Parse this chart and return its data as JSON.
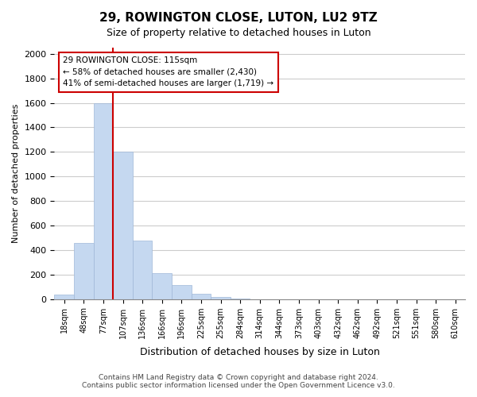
{
  "title": "29, ROWINGTON CLOSE, LUTON, LU2 9TZ",
  "subtitle": "Size of property relative to detached houses in Luton",
  "xlabel": "Distribution of detached houses by size in Luton",
  "ylabel": "Number of detached properties",
  "bar_labels": [
    "18sqm",
    "48sqm",
    "77sqm",
    "107sqm",
    "136sqm",
    "166sqm",
    "196sqm",
    "225sqm",
    "255sqm",
    "284sqm",
    "314sqm",
    "344sqm",
    "373sqm",
    "403sqm",
    "432sqm",
    "462sqm",
    "492sqm",
    "521sqm",
    "551sqm",
    "580sqm",
    "610sqm"
  ],
  "bar_values": [
    35,
    455,
    1600,
    1200,
    480,
    210,
    115,
    45,
    20,
    5,
    0,
    0,
    0,
    0,
    0,
    0,
    0,
    0,
    0,
    0,
    0
  ],
  "bar_color": "#c5d8f0",
  "bar_edge_color": "#a0b8d8",
  "vline_x": 3,
  "vline_color": "#cc0000",
  "annotation_line1": "29 ROWINGTON CLOSE: 115sqm",
  "annotation_line2": "← 58% of detached houses are smaller (2,430)",
  "annotation_line3": "41% of semi-detached houses are larger (1,719) →",
  "annotation_box_color": "white",
  "annotation_box_edge": "#cc0000",
  "ylim": [
    0,
    2050
  ],
  "yticks": [
    0,
    200,
    400,
    600,
    800,
    1000,
    1200,
    1400,
    1600,
    1800,
    2000
  ],
  "footer_line1": "Contains HM Land Registry data © Crown copyright and database right 2024.",
  "footer_line2": "Contains public sector information licensed under the Open Government Licence v3.0.",
  "bg_color": "#ffffff",
  "grid_color": "#cccccc"
}
